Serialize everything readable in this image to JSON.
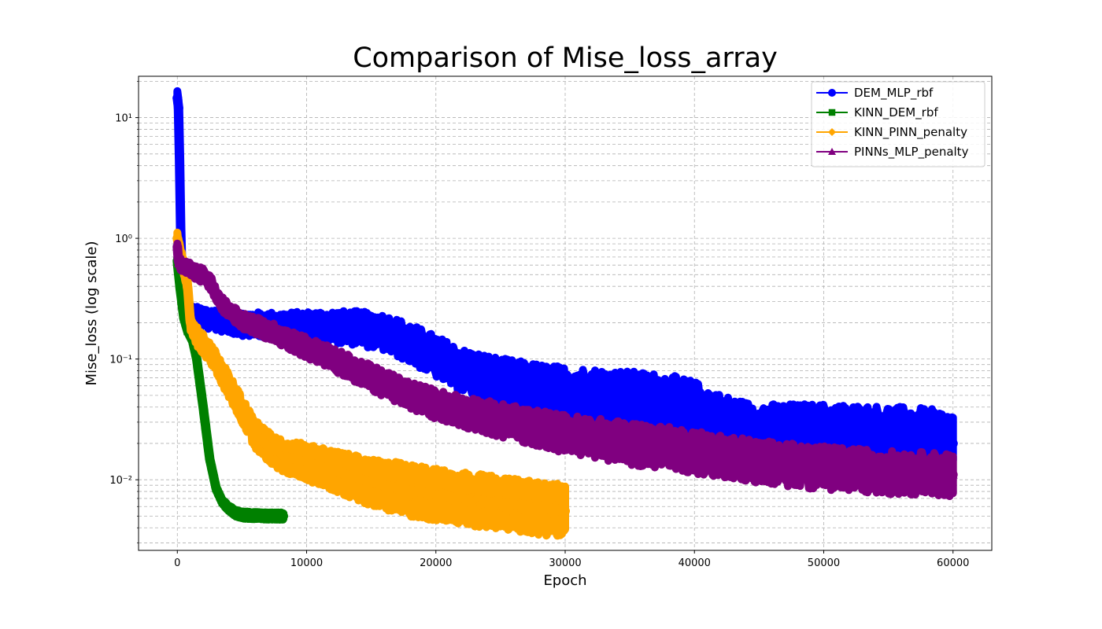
{
  "chart_data": {
    "type": "line",
    "title": "Comparison of Mise_loss_array",
    "xlabel": "Epoch",
    "ylabel": "Mise_loss (log scale)",
    "xlim": [
      -3000,
      63000
    ],
    "ylim": [
      0.0026,
      22
    ],
    "yscale": "log",
    "grid": true,
    "legend_position": "top-right",
    "x_ticks": [
      0,
      10000,
      20000,
      30000,
      40000,
      50000,
      60000
    ],
    "x_tick_labels": [
      "0",
      "10000",
      "20000",
      "30000",
      "40000",
      "50000",
      "60000"
    ],
    "y_ticks": [
      0.01,
      0.1,
      1,
      10
    ],
    "y_tick_labels": [
      "10⁻²",
      "10⁻¹",
      "10⁰",
      "10¹"
    ],
    "series": [
      {
        "name": "DEM_MLP_rbf",
        "color": "#0000ff",
        "marker": "circle",
        "noise": 0.25,
        "x": [
          0,
          100,
          200,
          300,
          500,
          800,
          1500,
          3000,
          5000,
          8000,
          12000,
          14000,
          16000,
          17000,
          18000,
          20000,
          22000,
          25000,
          28000,
          30000,
          33000,
          36000,
          38000,
          40000,
          42000,
          44000,
          46000,
          50000,
          55000,
          58000,
          60000
        ],
        "y": [
          14.5,
          12,
          3,
          0.6,
          0.3,
          0.235,
          0.225,
          0.21,
          0.195,
          0.188,
          0.185,
          0.18,
          0.165,
          0.15,
          0.135,
          0.105,
          0.08,
          0.065,
          0.056,
          0.052,
          0.048,
          0.044,
          0.042,
          0.037,
          0.029,
          0.025,
          0.024,
          0.024,
          0.023,
          0.022,
          0.02
        ]
      },
      {
        "name": "KINN_DEM_rbf",
        "color": "#008000",
        "marker": "square",
        "noise": 0.03,
        "x": [
          0,
          200,
          500,
          800,
          1200,
          1500,
          2000,
          2500,
          3000,
          3500,
          4000,
          4500,
          5000,
          6000,
          7000,
          8200
        ],
        "y": [
          0.65,
          0.4,
          0.22,
          0.17,
          0.14,
          0.1,
          0.04,
          0.015,
          0.0085,
          0.0065,
          0.0058,
          0.0053,
          0.0051,
          0.00505,
          0.005,
          0.005
        ]
      },
      {
        "name": "KINN_PINN_penalty",
        "color": "#ffa500",
        "marker": "diamond",
        "noise": 0.22,
        "x": [
          0,
          300,
          800,
          1000,
          1500,
          2500,
          3500,
          5000,
          6000,
          7000,
          8000,
          10000,
          12000,
          15000,
          18000,
          20000,
          23000,
          26000,
          28000,
          30000
        ],
        "y": [
          1.0,
          0.7,
          0.4,
          0.2,
          0.155,
          0.115,
          0.075,
          0.038,
          0.024,
          0.019,
          0.016,
          0.014,
          0.012,
          0.0095,
          0.0082,
          0.0075,
          0.0068,
          0.0062,
          0.0058,
          0.0055
        ]
      },
      {
        "name": "PINNs_MLP_penalty",
        "color": "#800080",
        "marker": "triangle",
        "noise": 0.18,
        "x": [
          0,
          100,
          500,
          1000,
          1500,
          2000,
          2500,
          3000,
          3500,
          4000,
          5000,
          6000,
          8000,
          10000,
          12000,
          15000,
          18000,
          20000,
          25000,
          30000,
          35000,
          40000,
          45000,
          50000,
          55000,
          60000
        ],
        "y": [
          0.85,
          0.62,
          0.58,
          0.55,
          0.52,
          0.49,
          0.44,
          0.34,
          0.28,
          0.25,
          0.21,
          0.19,
          0.155,
          0.125,
          0.1,
          0.07,
          0.05,
          0.042,
          0.031,
          0.024,
          0.02,
          0.017,
          0.014,
          0.0125,
          0.0115,
          0.011
        ]
      }
    ]
  }
}
